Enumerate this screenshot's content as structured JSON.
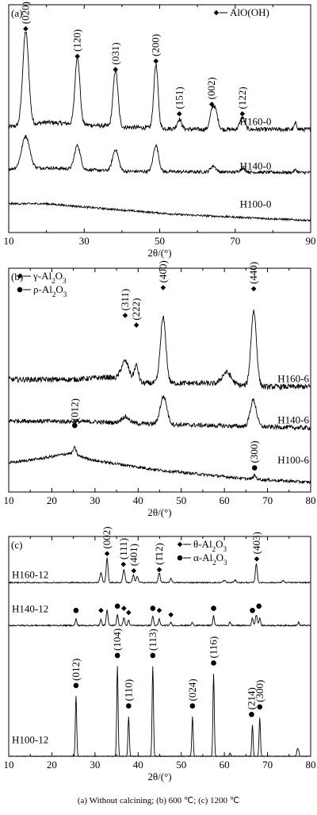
{
  "caption": "(a) Without calcining; (b) 600 ℃; (c) 1200 ℃",
  "chart_data": [
    {
      "type": "line",
      "panel_label": "(a)",
      "xlabel": "2θ/(°)",
      "xlim": [
        10,
        90
      ],
      "xticks": [
        10,
        30,
        50,
        70,
        90
      ],
      "yticks": "none",
      "legend": [
        {
          "marker": "diamond",
          "label": "AlO(OH)"
        }
      ],
      "legend_placement": "top-right",
      "series": [
        {
          "name": "H160-0",
          "baseline": 0.86,
          "noise": 0.018,
          "background": [
            [
              10,
              0.02
            ],
            [
              20,
              0.06
            ],
            [
              40,
              0.02
            ],
            [
              60,
              0.0
            ],
            [
              90,
              0.0
            ]
          ],
          "peaks": [
            [
              14.5,
              0.78,
              1.1
            ],
            [
              28.2,
              0.57,
              0.9
            ],
            [
              38.3,
              0.47,
              0.9
            ],
            [
              49.0,
              0.53,
              0.8
            ],
            [
              55.2,
              0.08,
              0.8
            ],
            [
              64.0,
              0.17,
              0.9
            ],
            [
              65.0,
              0.1,
              0.8
            ],
            [
              71.9,
              0.1,
              0.9
            ],
            [
              86.0,
              0.05,
              0.5
            ]
          ],
          "label_at": [
            80,
            0.93
          ]
        },
        {
          "name": "H140-0",
          "baseline": 0.5,
          "noise": 0.013,
          "background": [
            [
              10,
              0.03
            ],
            [
              20,
              0.04
            ],
            [
              40,
              0.01
            ],
            [
              90,
              0.0
            ]
          ],
          "peaks": [
            [
              14.5,
              0.27,
              1.5
            ],
            [
              28.2,
              0.2,
              1.1
            ],
            [
              38.3,
              0.18,
              1.1
            ],
            [
              49.0,
              0.22,
              1.0
            ],
            [
              64.2,
              0.05,
              1.0
            ],
            [
              72.0,
              0.03,
              1.0
            ],
            [
              86.0,
              0.02,
              0.6
            ]
          ],
          "label_at": [
            80,
            0.56
          ]
        },
        {
          "name": "H100-0",
          "baseline": 0.1,
          "noise": 0.008,
          "background": [
            [
              10,
              0.14
            ],
            [
              20,
              0.14
            ],
            [
              35,
              0.1
            ],
            [
              55,
              0.05
            ],
            [
              90,
              0.0
            ]
          ],
          "peaks": [],
          "label_at": [
            80,
            0.24
          ]
        }
      ],
      "peak_labels": [
        {
          "text": "(020)",
          "x": 14.5,
          "marker_y": 1.7,
          "marker": "diamond"
        },
        {
          "text": "(120)",
          "x": 28.2,
          "marker_y": 1.47,
          "marker": "diamond"
        },
        {
          "text": "(031)",
          "x": 38.3,
          "marker_y": 1.36,
          "marker": "diamond"
        },
        {
          "text": "(200)",
          "x": 49.0,
          "marker_y": 1.43,
          "marker": "diamond"
        },
        {
          "text": "(151)",
          "x": 55.2,
          "marker_y": 0.99,
          "marker": "diamond"
        },
        {
          "text": "(002)",
          "x": 63.8,
          "marker_y": 1.07,
          "marker": "diamond"
        },
        {
          "text": "(122)",
          "x": 71.9,
          "marker_y": 0.99,
          "marker": "diamond"
        }
      ]
    },
    {
      "type": "line",
      "panel_label": "(b)",
      "xlabel": "2θ/(°)",
      "xlim": [
        10,
        80
      ],
      "xticks": [
        10,
        20,
        30,
        40,
        50,
        60,
        70,
        80
      ],
      "yticks": "none",
      "legend": [
        {
          "marker": "diamond",
          "label": "γ-Al2O3"
        },
        {
          "marker": "circle",
          "label": "ρ-Al2O3"
        }
      ],
      "legend_placement": "top-left",
      "series": [
        {
          "name": "H160-6",
          "baseline": 0.87,
          "noise": 0.022,
          "background": [
            [
              10,
              0.06
            ],
            [
              25,
              0.06
            ],
            [
              33,
              0.08
            ],
            [
              40,
              0.03
            ],
            [
              55,
              0.03
            ],
            [
              70,
              0.0
            ],
            [
              80,
              0.0
            ]
          ],
          "peaks": [
            [
              37.0,
              0.16,
              1.3
            ],
            [
              39.6,
              0.14,
              0.7
            ],
            [
              45.8,
              0.54,
              0.9
            ],
            [
              60.5,
              0.1,
              1.5
            ],
            [
              66.8,
              0.62,
              0.9
            ]
          ],
          "label_at": [
            80,
            0.94
          ]
        },
        {
          "name": "H140-6",
          "baseline": 0.53,
          "noise": 0.018,
          "background": [
            [
              10,
              0.06
            ],
            [
              30,
              0.05
            ],
            [
              45,
              0.03
            ],
            [
              80,
              0.0
            ]
          ],
          "peaks": [
            [
              37.0,
              0.05,
              1.3
            ],
            [
              45.9,
              0.23,
              1.1
            ],
            [
              66.7,
              0.22,
              1.0
            ]
          ],
          "label_at": [
            80,
            0.6
          ]
        },
        {
          "name": "H100-6",
          "baseline": 0.08,
          "noise": 0.012,
          "background": [
            [
              10,
              0.16
            ],
            [
              18,
              0.2
            ],
            [
              24,
              0.24
            ],
            [
              30,
              0.18
            ],
            [
              45,
              0.1
            ],
            [
              65,
              0.03
            ],
            [
              80,
              0.0
            ]
          ],
          "peaks": [
            [
              25.3,
              0.06,
              0.5
            ],
            [
              67.0,
              0.03,
              0.5
            ]
          ],
          "label_at": [
            80,
            0.27
          ]
        }
      ],
      "peak_labels": [
        {
          "text": "(311)",
          "x": 37.0,
          "marker_y": 1.46,
          "marker": "diamond"
        },
        {
          "text": "(222)",
          "x": 39.6,
          "marker_y": 1.38,
          "marker": "diamond"
        },
        {
          "text": "(400)",
          "x": 45.8,
          "marker_y": 1.69,
          "marker": "diamond"
        },
        {
          "text": "(440)",
          "x": 66.8,
          "marker_y": 1.68,
          "marker": "diamond"
        },
        {
          "text": "(012)",
          "x": 25.3,
          "marker_y": 0.55,
          "marker": "circle"
        },
        {
          "text": "(300)",
          "x": 67.0,
          "marker_y": 0.2,
          "marker": "circle"
        }
      ]
    },
    {
      "type": "line",
      "panel_label": "(c)",
      "xlabel": "2θ/(°)",
      "xlim": [
        10,
        80
      ],
      "xticks": [
        10,
        20,
        30,
        40,
        50,
        60,
        70,
        80
      ],
      "yticks": "none",
      "legend": [
        {
          "marker": "diamond",
          "label": "θ-Al2O3"
        },
        {
          "marker": "circle",
          "label": "α-Al2O3"
        }
      ],
      "legend_placement": "top-right",
      "series": [
        {
          "name": "H160-12",
          "baseline": 1.62,
          "noise": 0.005,
          "background": [],
          "peaks": [
            [
              31.4,
              0.09,
              0.35
            ],
            [
              32.8,
              0.23,
              0.3
            ],
            [
              36.7,
              0.12,
              0.35
            ],
            [
              38.9,
              0.07,
              0.3
            ],
            [
              39.8,
              0.06,
              0.3
            ],
            [
              44.9,
              0.09,
              0.3
            ],
            [
              47.6,
              0.04,
              0.3
            ],
            [
              60.0,
              0.02,
              0.4
            ],
            [
              62.5,
              0.02,
              0.4
            ],
            [
              67.4,
              0.18,
              0.3
            ],
            [
              73.6,
              0.02,
              0.3
            ]
          ],
          "label_at": [
            null,
            null
          ]
        },
        {
          "name": "H140-12",
          "baseline": 1.22,
          "noise": 0.006,
          "background": [],
          "peaks": [
            [
              25.6,
              0.06,
              0.25
            ],
            [
              31.4,
              0.06,
              0.25
            ],
            [
              32.8,
              0.14,
              0.3
            ],
            [
              35.2,
              0.1,
              0.25
            ],
            [
              36.7,
              0.07,
              0.3
            ],
            [
              37.8,
              0.05,
              0.25
            ],
            [
              43.4,
              0.09,
              0.25
            ],
            [
              44.9,
              0.06,
              0.25
            ],
            [
              47.6,
              0.03,
              0.25
            ],
            [
              52.6,
              0.03,
              0.25
            ],
            [
              57.5,
              0.09,
              0.25
            ],
            [
              61.3,
              0.03,
              0.25
            ],
            [
              66.5,
              0.07,
              0.25
            ],
            [
              67.4,
              0.1,
              0.3
            ],
            [
              68.2,
              0.07,
              0.25
            ],
            [
              77.2,
              0.03,
              0.25
            ]
          ],
          "label_at": [
            null,
            null
          ]
        },
        {
          "name": "H100-12",
          "baseline": 0.0,
          "noise": 0.003,
          "background": [],
          "peaks": [
            [
              25.6,
              0.56,
              0.22
            ],
            [
              35.2,
              0.84,
              0.22
            ],
            [
              37.8,
              0.37,
              0.22
            ],
            [
              43.4,
              0.84,
              0.22
            ],
            [
              52.6,
              0.37,
              0.22
            ],
            [
              57.5,
              0.77,
              0.22
            ],
            [
              61.3,
              0.03,
              0.22
            ],
            [
              66.5,
              0.29,
              0.22
            ],
            [
              68.2,
              0.36,
              0.22
            ],
            [
              76.9,
              0.06,
              0.22
            ],
            [
              77.2,
              0.05,
              0.22
            ]
          ],
          "label_at": [
            null,
            null
          ]
        }
      ],
      "peak_labels": [
        {
          "text": "(002)",
          "x": 32.8,
          "marker_y": 1.89,
          "marker": "diamond"
        },
        {
          "text": "(111)",
          "x": 36.6,
          "marker_y": 1.79,
          "marker": "diamond"
        },
        {
          "text": "(401)",
          "x": 39.0,
          "marker_y": 1.73,
          "marker": "diamond"
        },
        {
          "text": "(1̄12)",
          "x": 44.9,
          "marker_y": 1.74,
          "marker": "diamond"
        },
        {
          "text": "(403)",
          "x": 67.5,
          "marker_y": 1.84,
          "marker": "diamond"
        },
        {
          "text": "(012)",
          "x": 25.6,
          "marker_y": 0.66,
          "marker": "circle"
        },
        {
          "text": "(104)",
          "x": 35.2,
          "marker_y": 0.94,
          "marker": "circle"
        },
        {
          "text": "(110)",
          "x": 37.8,
          "marker_y": 0.47,
          "marker": "circle"
        },
        {
          "text": "(113)",
          "x": 43.4,
          "marker_y": 0.94,
          "marker": "circle"
        },
        {
          "text": "(024)",
          "x": 52.6,
          "marker_y": 0.47,
          "marker": "circle"
        },
        {
          "text": "(116)",
          "x": 57.5,
          "marker_y": 0.87,
          "marker": "circle"
        },
        {
          "text": "(214)",
          "x": 66.3,
          "marker_y": 0.39,
          "marker": "circle"
        },
        {
          "text": "(300)",
          "x": 68.2,
          "marker_y": 0.46,
          "marker": "circle"
        }
      ],
      "row_markers": [
        {
          "x": 25.6,
          "y": 1.36,
          "marker": "circle"
        },
        {
          "x": 31.4,
          "y": 1.36,
          "marker": "diamond"
        },
        {
          "x": 35.2,
          "y": 1.4,
          "marker": "circle"
        },
        {
          "x": 36.7,
          "y": 1.38,
          "marker": "diamond"
        },
        {
          "x": 37.8,
          "y": 1.34,
          "marker": "diamond"
        },
        {
          "x": 43.4,
          "y": 1.38,
          "marker": "circle"
        },
        {
          "x": 44.9,
          "y": 1.36,
          "marker": "diamond"
        },
        {
          "x": 47.6,
          "y": 1.32,
          "marker": "diamond"
        },
        {
          "x": 57.5,
          "y": 1.38,
          "marker": "circle"
        },
        {
          "x": 66.5,
          "y": 1.36,
          "marker": "circle"
        },
        {
          "x": 68.0,
          "y": 1.4,
          "marker": "circle"
        }
      ],
      "side_labels": [
        "H160-12",
        "H140-12",
        "H100-12"
      ]
    }
  ]
}
